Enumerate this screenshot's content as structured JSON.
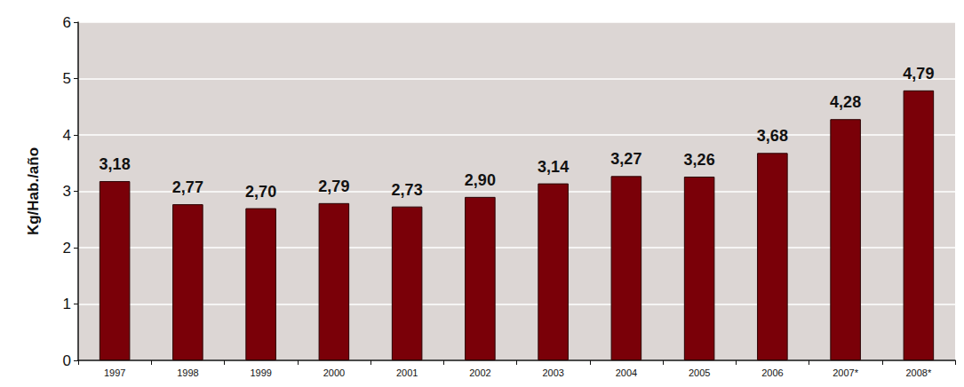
{
  "chart_data": {
    "type": "bar",
    "y_label": "Kg/Hab./año",
    "categories": [
      "1997",
      "1998",
      "1999",
      "2000",
      "2001",
      "2002",
      "2003",
      "2004",
      "2005",
      "2006",
      "2007*",
      "2008*"
    ],
    "values": [
      3.18,
      2.77,
      2.7,
      2.79,
      2.73,
      2.9,
      3.14,
      3.27,
      3.26,
      3.68,
      4.28,
      4.79
    ],
    "value_labels": [
      "3,18",
      "2,77",
      "2,70",
      "2,79",
      "2,73",
      "2,90",
      "3,14",
      "3,27",
      "3,26",
      "3,68",
      "4,28",
      "4,79"
    ],
    "color": "#7a0008",
    "ylim": [
      0,
      6
    ],
    "yticks": [
      0,
      1,
      2,
      3,
      4,
      5,
      6
    ],
    "grid": true,
    "data_labels": true
  }
}
